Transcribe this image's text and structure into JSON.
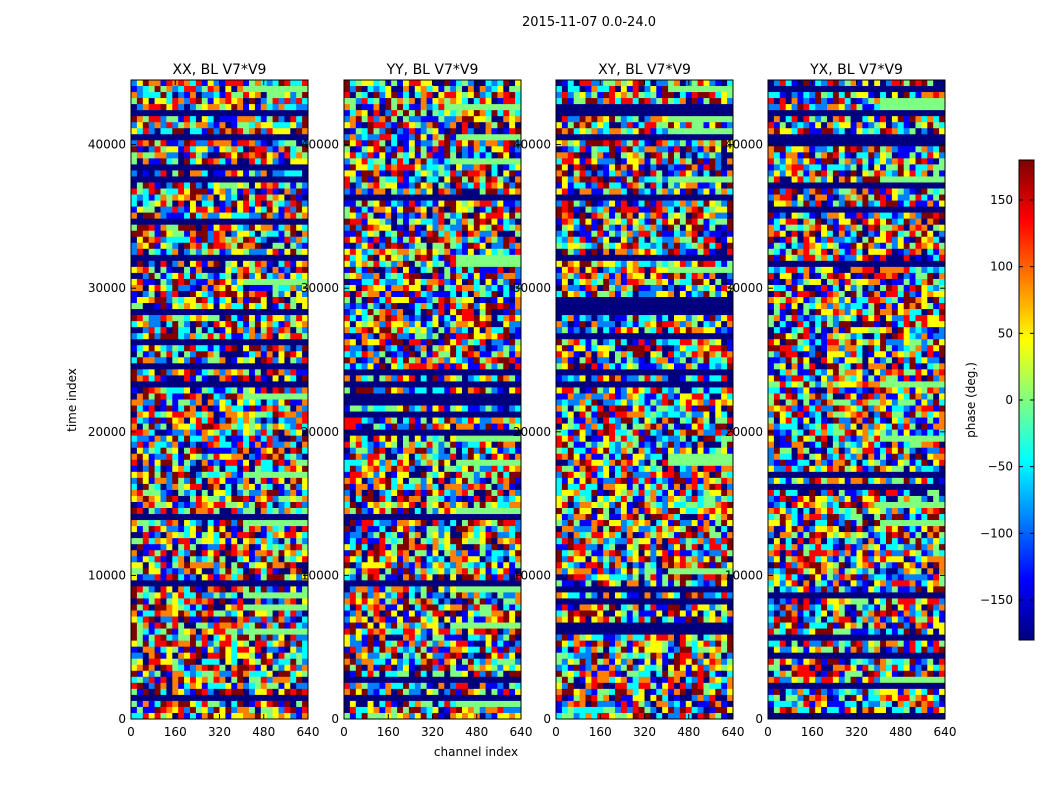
{
  "figure_title": "2015-11-07 0.0-24.0",
  "colormap": [
    "#00007f",
    "#0000ff",
    "#0080ff",
    "#00ffff",
    "#80ff80",
    "#ffff00",
    "#ff8000",
    "#ff0000",
    "#7f0000"
  ],
  "chart_data": {
    "type": "heatmap",
    "xlabel": "channel index",
    "ylabel": "time index",
    "xlim": [
      0,
      640
    ],
    "ylim": [
      0,
      44500
    ],
    "x_ticks": [
      0,
      160,
      320,
      480,
      640
    ],
    "y_ticks": [
      0,
      10000,
      20000,
      30000,
      40000
    ],
    "x_tick_labels": [
      "0",
      "160",
      "320",
      "480",
      "640"
    ],
    "y_tick_labels": [
      "0",
      "10000",
      "20000",
      "30000",
      "40000"
    ],
    "value_label": "phase (deg.)",
    "value_range": [
      -180,
      180
    ],
    "colorbar_ticks": [
      -150,
      -100,
      -50,
      0,
      50,
      100,
      150
    ],
    "colorbar_tick_labels": [
      "−150",
      "−100",
      "−50",
      "0",
      "50",
      "100",
      "150"
    ],
    "panels": [
      {
        "title": "XX, BL V7*V9"
      },
      {
        "title": "YY, BL V7*V9"
      },
      {
        "title": "XY, BL V7*V9"
      },
      {
        "title": "YX, BL V7*V9"
      }
    ]
  }
}
